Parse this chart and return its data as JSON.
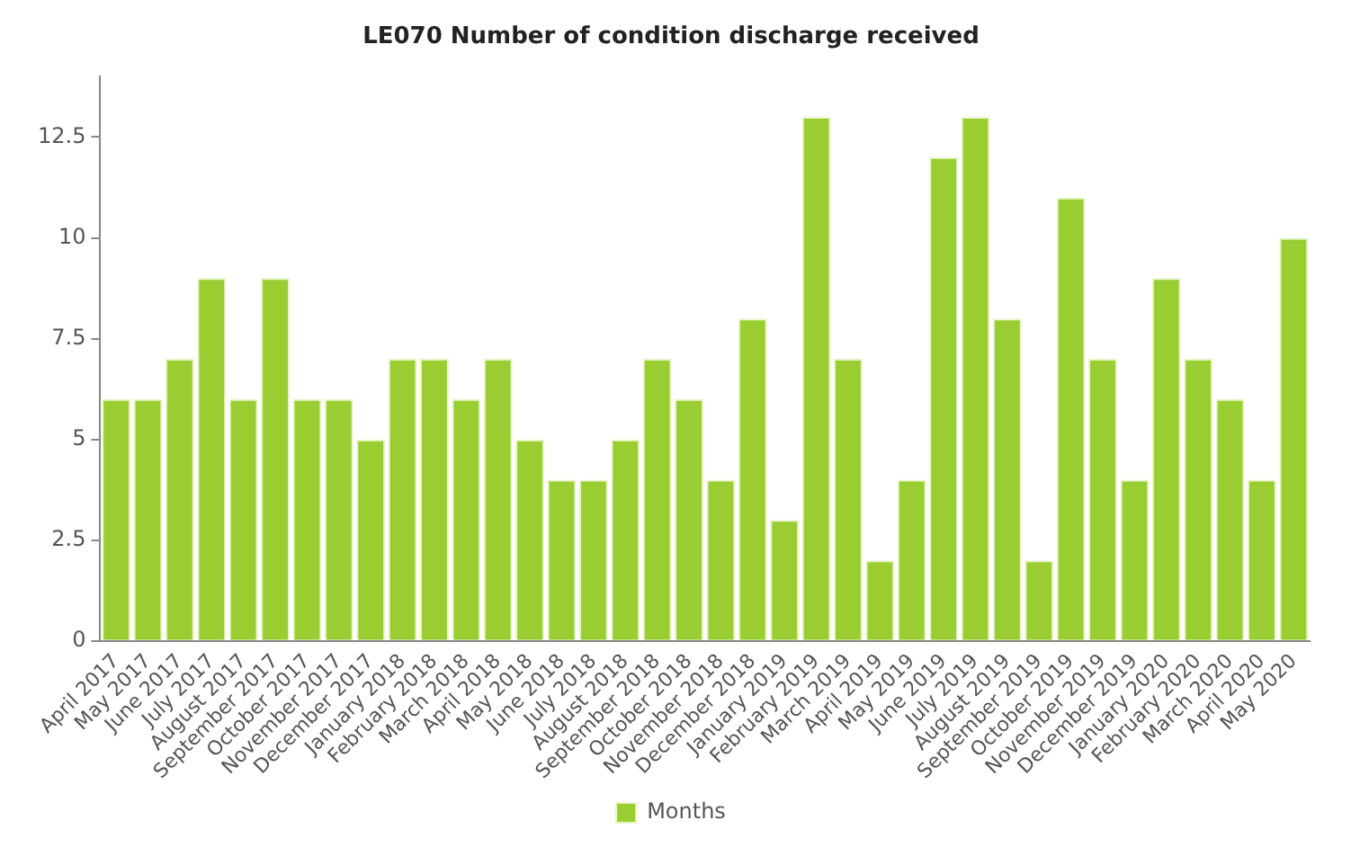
{
  "chart_data": {
    "type": "bar",
    "title": "LE070 Number of condition discharge received",
    "categories": [
      "April 2017",
      "May 2017",
      "June 2017",
      "July 2017",
      "August 2017",
      "September 2017",
      "October 2017",
      "November 2017",
      "December 2017",
      "January 2018",
      "February 2018",
      "March 2018",
      "April 2018",
      "May 2018",
      "June 2018",
      "July 2018",
      "August 2018",
      "September 2018",
      "October 2018",
      "November 2018",
      "December 2018",
      "January 2019",
      "February 2019",
      "March 2019",
      "April 2019",
      "May 2019",
      "June 2019",
      "July 2019",
      "August 2019",
      "September 2019",
      "October 2019",
      "November 2019",
      "December 2019",
      "January 2020",
      "February 2020",
      "March 2020",
      "April 2020",
      "May 2020"
    ],
    "series": [
      {
        "name": "Months",
        "color": "#9acd32",
        "values": [
          6,
          6,
          7,
          9,
          6,
          9,
          6,
          6,
          5,
          7,
          7,
          6,
          7,
          5,
          4,
          4,
          5,
          7,
          6,
          4,
          8,
          3,
          13,
          7,
          2,
          4,
          12,
          13,
          8,
          2,
          11,
          7,
          4,
          9,
          7,
          6,
          4,
          10
        ]
      }
    ],
    "ylim": [
      0,
      14
    ],
    "yticks": [
      0,
      2.5,
      5,
      7.5,
      10,
      12.5
    ],
    "grid": false,
    "legend": "bottom"
  }
}
